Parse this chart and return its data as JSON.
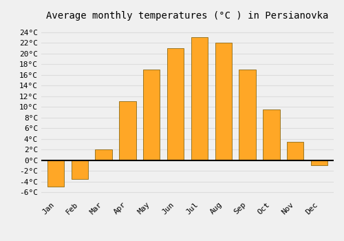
{
  "title": "Average monthly temperatures (°C ) in Persianovka",
  "months": [
    "Jan",
    "Feb",
    "Mar",
    "Apr",
    "May",
    "Jun",
    "Jul",
    "Aug",
    "Sep",
    "Oct",
    "Nov",
    "Dec"
  ],
  "values": [
    -5,
    -3.5,
    2,
    11,
    17,
    21,
    23,
    22,
    17,
    9.5,
    3.5,
    -1
  ],
  "bar_color": "#FFA726",
  "bar_edge_color": "#8B6914",
  "background_color": "#F0F0F0",
  "grid_color": "#DDDDDD",
  "yticks": [
    -6,
    -4,
    -2,
    0,
    2,
    4,
    6,
    8,
    10,
    12,
    14,
    16,
    18,
    20,
    22,
    24
  ],
  "ylim": [
    -7,
    25.5
  ],
  "xlim": [
    -0.6,
    11.6
  ],
  "title_fontsize": 10,
  "tick_fontsize": 8,
  "zero_line_color": "#000000",
  "bar_width": 0.7
}
